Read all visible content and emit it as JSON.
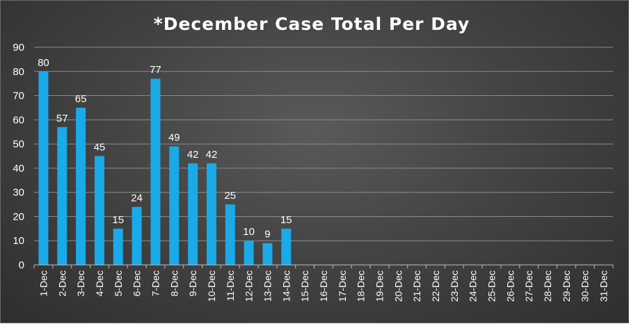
{
  "chart_data": {
    "type": "bar",
    "title": "*December Case Total Per Day",
    "xlabel": "",
    "ylabel": "",
    "ylim": [
      0,
      90
    ],
    "yticks": [
      0,
      10,
      20,
      30,
      40,
      50,
      60,
      70,
      80,
      90
    ],
    "grid": true,
    "legend": "none",
    "categories": [
      "1-Dec",
      "2-Dec",
      "3-Dec",
      "4-Dec",
      "5-Dec",
      "6-Dec",
      "7-Dec",
      "8-Dec",
      "9-Dec",
      "10-Dec",
      "11-Dec",
      "12-Dec",
      "13-Dec",
      "14-Dec",
      "15-Dec",
      "16-Dec",
      "17-Dec",
      "18-Dec",
      "19-Dec",
      "20-Dec",
      "21-Dec",
      "22-Dec",
      "23-Dec",
      "24-Dec",
      "25-Dec",
      "26-Dec",
      "27-Dec",
      "28-Dec",
      "29-Dec",
      "30-Dec",
      "31-Dec"
    ],
    "values": [
      80,
      57,
      65,
      45,
      15,
      24,
      77,
      49,
      42,
      42,
      25,
      10,
      9,
      15,
      null,
      null,
      null,
      null,
      null,
      null,
      null,
      null,
      null,
      null,
      null,
      null,
      null,
      null,
      null,
      null,
      null
    ],
    "colors": {
      "bar": "#1aaae8",
      "grid": "#8c8c8c",
      "axis": "#bfbfbf",
      "text": "#ffffff"
    }
  }
}
